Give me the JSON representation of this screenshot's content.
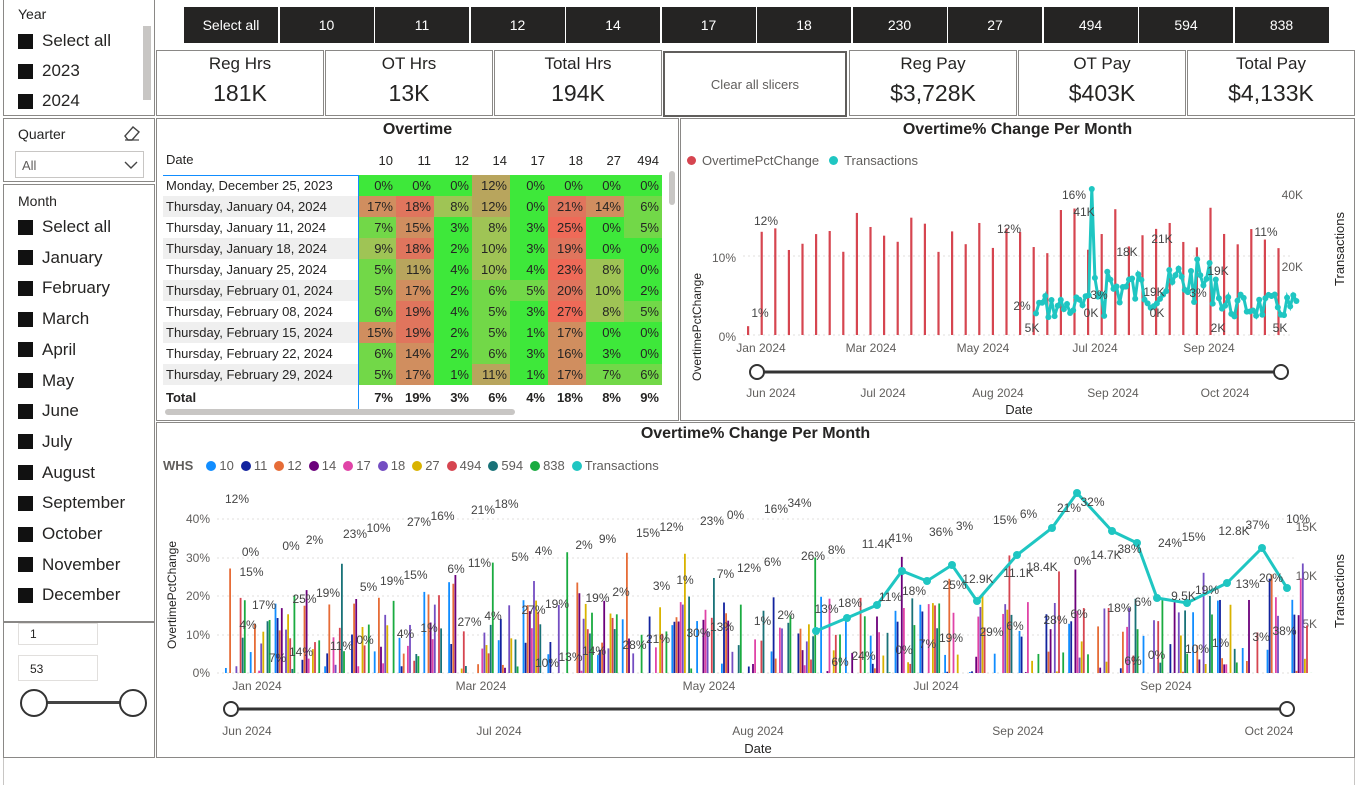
{
  "year_slicer": {
    "title": "Year",
    "items": [
      "Select all",
      "2023",
      "2024"
    ]
  },
  "quarter_slicer": {
    "title": "Quarter",
    "value": "All"
  },
  "month_slicer": {
    "title": "Month",
    "items": [
      "Select all",
      "January",
      "February",
      "March",
      "April",
      "May",
      "June",
      "July",
      "August",
      "September",
      "October",
      "November",
      "December"
    ]
  },
  "week_range": {
    "min": "1",
    "max": "53"
  },
  "whs_buttons": [
    "Select all",
    "10",
    "11",
    "12",
    "14",
    "17",
    "18",
    "230",
    "27",
    "494",
    "594",
    "838"
  ],
  "cards": [
    {
      "label": "Reg Hrs",
      "value": "181K"
    },
    {
      "label": "OT Hrs",
      "value": "13K"
    },
    {
      "label": "Total Hrs",
      "value": "194K"
    },
    {
      "label": "Reg Pay",
      "value": "$3,728K"
    },
    {
      "label": "OT Pay",
      "value": "$403K"
    },
    {
      "label": "Total Pay",
      "value": "$4,133K"
    }
  ],
  "clear_button": "Clear all slicers",
  "matrix": {
    "title": "Overtime",
    "header": [
      "Date",
      "10",
      "11",
      "12",
      "14",
      "17",
      "18",
      "27",
      "494"
    ],
    "rows": [
      {
        "date": "Monday, December 25, 2023",
        "values": [
          "0%",
          "0%",
          "0%",
          "12%",
          "0%",
          "0%",
          "0%",
          "0%"
        ]
      },
      {
        "date": "Thursday, January 04, 2024",
        "values": [
          "17%",
          "18%",
          "8%",
          "12%",
          "0%",
          "21%",
          "14%",
          "6%"
        ]
      },
      {
        "date": "Thursday, January 11, 2024",
        "values": [
          "7%",
          "15%",
          "3%",
          "8%",
          "3%",
          "25%",
          "0%",
          "5%"
        ]
      },
      {
        "date": "Thursday, January 18, 2024",
        "values": [
          "9%",
          "18%",
          "2%",
          "10%",
          "3%",
          "19%",
          "0%",
          "0%"
        ]
      },
      {
        "date": "Thursday, January 25, 2024",
        "values": [
          "5%",
          "11%",
          "4%",
          "10%",
          "4%",
          "23%",
          "8%",
          "0%"
        ]
      },
      {
        "date": "Thursday, February 01, 2024",
        "values": [
          "5%",
          "17%",
          "2%",
          "6%",
          "5%",
          "20%",
          "10%",
          "2%"
        ]
      },
      {
        "date": "Thursday, February 08, 2024",
        "values": [
          "6%",
          "19%",
          "4%",
          "5%",
          "3%",
          "27%",
          "8%",
          "5%"
        ]
      },
      {
        "date": "Thursday, February 15, 2024",
        "values": [
          "15%",
          "19%",
          "2%",
          "5%",
          "1%",
          "17%",
          "0%",
          "0%"
        ]
      },
      {
        "date": "Thursday, February 22, 2024",
        "values": [
          "6%",
          "14%",
          "2%",
          "6%",
          "3%",
          "16%",
          "3%",
          "0%"
        ]
      },
      {
        "date": "Thursday, February 29, 2024",
        "values": [
          "5%",
          "17%",
          "1%",
          "11%",
          "1%",
          "17%",
          "7%",
          "6%"
        ]
      }
    ],
    "total": {
      "label": "Total",
      "values": [
        "7%",
        "19%",
        "3%",
        "6%",
        "4%",
        "18%",
        "8%",
        "9%"
      ]
    }
  },
  "chart_data": [
    {
      "type": "bar",
      "title": "Overtime% Change Per Month",
      "legend": [
        "OvertimePctChange",
        "Transactions"
      ],
      "ylabel": "OvertimePctChange",
      "y2label": "Transactions",
      "xlabel": "Date",
      "yticks": [
        "0%",
        "10%"
      ],
      "y2ticks": [
        "20K",
        "40K"
      ],
      "xticks": [
        "Jan 2024",
        "Mar 2024",
        "May 2024",
        "Jul 2024",
        "Sep 2024"
      ],
      "slider_ticks": [
        "Jun 2024",
        "Jul 2024",
        "Aug 2024",
        "Sep 2024",
        "Oct 2024"
      ],
      "data_labels": [
        "12%",
        "1%",
        "12%",
        "16%",
        "41K",
        "18K",
        "21K",
        "19K",
        "3%",
        "19K",
        "0K",
        "0K",
        "2%",
        "5K",
        "2K",
        "5K",
        "3%",
        "11%"
      ],
      "ylim": [
        0,
        0.17
      ],
      "y2lim": [
        0,
        45000
      ],
      "colors": {
        "OvertimePctChange": "#d64550",
        "Transactions": "#1fc6c2"
      }
    },
    {
      "type": "bar",
      "title": "Overtime% Change Per Month",
      "legend_title": "WHS",
      "legend": [
        {
          "name": "10",
          "color": "#118dff"
        },
        {
          "name": "11",
          "color": "#12239e"
        },
        {
          "name": "12",
          "color": "#e66c37"
        },
        {
          "name": "14",
          "color": "#6b007b"
        },
        {
          "name": "17",
          "color": "#e044a7"
        },
        {
          "name": "18",
          "color": "#744ec2"
        },
        {
          "name": "27",
          "color": "#d9b300"
        },
        {
          "name": "494",
          "color": "#d64550"
        },
        {
          "name": "594",
          "color": "#197278"
        },
        {
          "name": "838",
          "color": "#1aab40"
        },
        {
          "name": "Transactions",
          "color": "#1fc6c2"
        }
      ],
      "ylabel": "OvertimePctChange",
      "y2label": "Transactions",
      "xlabel": "Date",
      "yticks": [
        "0%",
        "10%",
        "20%",
        "30%",
        "40%"
      ],
      "y2ticks": [
        "5K",
        "10K",
        "15K"
      ],
      "xticks": [
        "Jan 2024",
        "Mar 2024",
        "May 2024",
        "Jul 2024",
        "Sep 2024"
      ],
      "slider_ticks": [
        "Jun 2024",
        "Jul 2024",
        "Aug 2024",
        "Sep 2024",
        "Oct 2024"
      ],
      "data_labels": [
        "12%",
        "0%",
        "17%",
        "7%",
        "0%",
        "25%",
        "14%",
        "2%",
        "19%",
        "11%",
        "23%",
        "5%",
        "0%",
        "10%",
        "19%",
        "4%",
        "27%",
        "15%",
        "1%",
        "16%",
        "6%",
        "27%",
        "21%",
        "11%",
        "4%",
        "18%",
        "5%",
        "27%",
        "10%",
        "4%",
        "19%",
        "13%",
        "2%",
        "19%",
        "14%",
        "9%",
        "2%",
        "28%",
        "15%",
        "3%",
        "21%",
        "12%",
        "1%",
        "30%",
        "23%",
        "7%",
        "13%",
        "0%",
        "12%",
        "1%",
        "16%",
        "6%",
        "2%",
        "34%",
        "26%",
        "13%",
        "6%",
        "8%",
        "18%",
        "24%",
        "11.4K",
        "11%",
        "0%",
        "41%",
        "18%",
        "7%",
        "36%",
        "25%",
        "19%",
        "3%",
        "12.9K",
        "29%",
        "15%",
        "11.1K",
        "6%",
        "6%",
        "18.4K",
        "28%",
        "21%",
        "0%",
        "6%",
        "32%",
        "14.7K",
        "18%",
        "6%",
        "38%",
        "6%",
        "0%",
        "24%",
        "9.5K",
        "10%",
        "15%",
        "19%",
        "1%",
        "12.8K",
        "13%",
        "3%",
        "37%",
        "20%",
        "38%",
        "10%",
        "15%",
        "4%"
      ],
      "ylim": [
        0,
        0.45
      ],
      "y2lim": [
        0,
        16000
      ]
    }
  ]
}
